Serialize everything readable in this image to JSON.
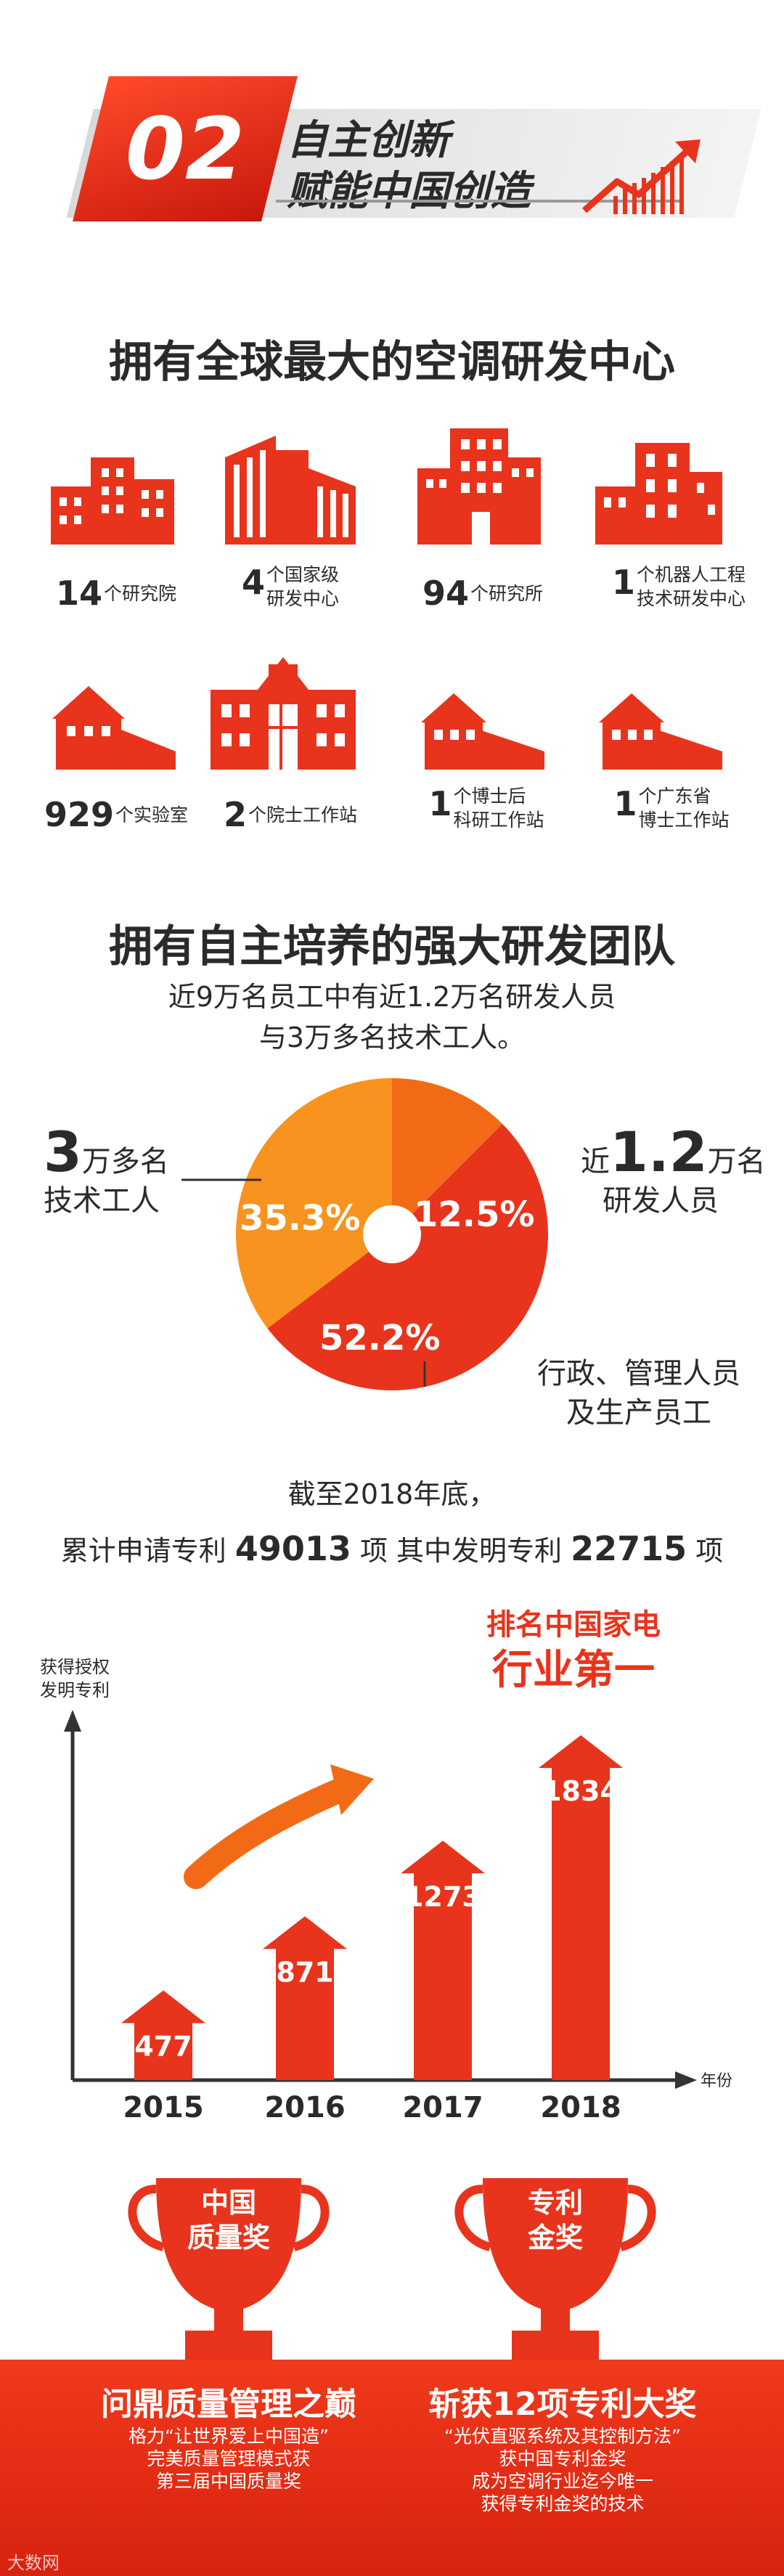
{
  "header": {
    "number": "02",
    "title_line1": "自主创新",
    "title_line2": "赋能中国创造"
  },
  "rd_centers": {
    "title": "拥有全球最大的空调研发中心",
    "items": [
      {
        "value": "14",
        "label": "个研究院"
      },
      {
        "value": "4",
        "label": "个国家级\n研发中心"
      },
      {
        "value": "94",
        "label": "个研究所"
      },
      {
        "value": "1",
        "label": "个机器人工程\n技术研发中心"
      },
      {
        "value": "929",
        "label": "个实验室"
      },
      {
        "value": "2",
        "label": "个院士工作站"
      },
      {
        "value": "1",
        "label": "个博士后\n科研工作站"
      },
      {
        "value": "1",
        "label": "个广东省\n博士工作站"
      }
    ]
  },
  "team": {
    "title": "拥有自主培养的强大研发团队",
    "subtitle_line1": "近9万名员工中有近1.2万名研发人员",
    "subtitle_line2": "与3万多名技术工人。",
    "left_big": "3",
    "left_rest": "万多名",
    "left_line2": "技术工人",
    "right_prefix": "近",
    "right_big": "1.2",
    "right_rest": "万名",
    "right_line2": "研发人员",
    "bottom_line1": "行政、管理人员",
    "bottom_line2": "及生产员工"
  },
  "chart_data": [
    {
      "type": "pie",
      "slices": [
        {
          "label": "技术工人",
          "value": 35.3,
          "display": "35.3%",
          "color": "#f7931e"
        },
        {
          "label": "研发人员",
          "value": 12.5,
          "display": "12.5%",
          "color": "#f36a16"
        },
        {
          "label": "行政、管理人员及生产员工",
          "value": 52.2,
          "display": "52.2%",
          "color": "#e8341c"
        }
      ]
    },
    {
      "type": "bar",
      "ylabel": "获得授权\n发明专利",
      "xlabel": "年份",
      "categories": [
        "2015",
        "2016",
        "2017",
        "2018"
      ],
      "values": [
        477,
        871,
        1273,
        1834
      ],
      "color": "#e8341c"
    }
  ],
  "patents": {
    "line1": "截至2018年底，",
    "line2_a": "累计申请专利 ",
    "line2_b": "49013",
    "line2_c": " 项   其中发明专利 ",
    "line2_d": "22715",
    "line2_e": " 项",
    "ylabel1": "获得授权",
    "ylabel2": "发明专利",
    "xlabel": "年份",
    "rank1": "排名中国家电",
    "rank2": "行业第一"
  },
  "awards": [
    {
      "cup1": "中国",
      "cup2": "质量奖",
      "title": "问鼎质量管理之巅",
      "text": [
        "格力“让世界爱上中国造”",
        "完美质量管理模式获",
        "第三届中国质量奖"
      ]
    },
    {
      "cup1": "专利",
      "cup2": "金奖",
      "title": "斩获12项专利大奖",
      "text": [
        "“光伏直驱系统及其控制方法”",
        "获中国专利金奖",
        "成为空调行业迄今唯一",
        "获得专利金奖的技术"
      ]
    }
  ],
  "watermark": "大数网",
  "colors": {
    "red": "#e8341c",
    "orange": "#f7931e",
    "mid_orange": "#f36a16"
  }
}
